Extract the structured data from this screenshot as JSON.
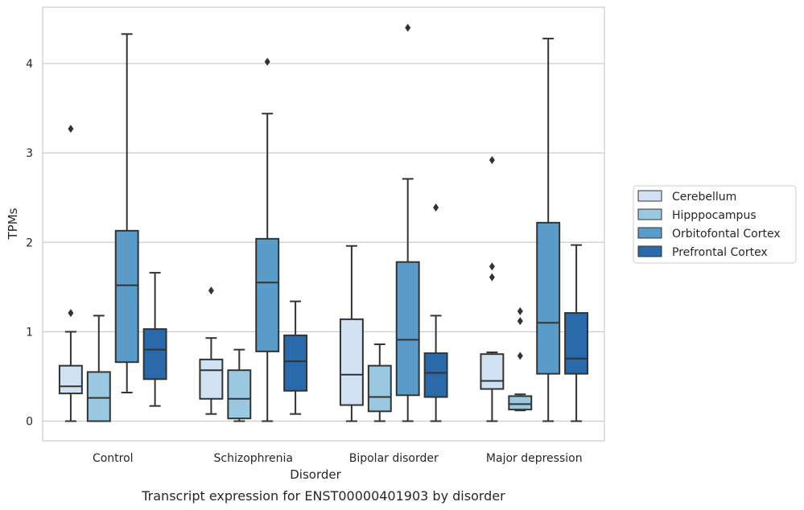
{
  "caption": "Transcript expression for ENST00000401903 by disorder",
  "chart_data": {
    "type": "box",
    "xlabel": "Disorder",
    "ylabel": "TPMs",
    "ylim": [
      -0.22,
      4.63
    ],
    "yticks": [
      0,
      1,
      2,
      3,
      4
    ],
    "grid": "horizontal",
    "legend_position": "right",
    "categories": [
      "Control",
      "Schizophrenia",
      "Bipolar disorder",
      "Major depression"
    ],
    "series": [
      {
        "name": "Cerebellum",
        "color": "#cfe1f2",
        "boxes": [
          {
            "whisker_low": 0.0,
            "q1": 0.31,
            "median": 0.39,
            "q3": 0.62,
            "whisker_high": 1.0,
            "outliers": [
              1.21,
              3.27
            ]
          },
          {
            "whisker_low": 0.08,
            "q1": 0.25,
            "median": 0.57,
            "q3": 0.69,
            "whisker_high": 0.93,
            "outliers": [
              1.46
            ]
          },
          {
            "whisker_low": 0.0,
            "q1": 0.18,
            "median": 0.52,
            "q3": 1.14,
            "whisker_high": 1.96,
            "outliers": []
          },
          {
            "whisker_low": 0.0,
            "q1": 0.36,
            "median": 0.45,
            "q3": 0.75,
            "whisker_high": 0.77,
            "outliers": [
              1.61,
              1.73,
              2.92
            ]
          }
        ]
      },
      {
        "name": "Hipppocampus",
        "color": "#9ac8e0",
        "boxes": [
          {
            "whisker_low": 0.0,
            "q1": 0.0,
            "median": 0.26,
            "q3": 0.55,
            "whisker_high": 1.18,
            "outliers": []
          },
          {
            "whisker_low": 0.0,
            "q1": 0.03,
            "median": 0.25,
            "q3": 0.57,
            "whisker_high": 0.8,
            "outliers": []
          },
          {
            "whisker_low": 0.0,
            "q1": 0.11,
            "median": 0.27,
            "q3": 0.62,
            "whisker_high": 0.86,
            "outliers": []
          },
          {
            "whisker_low": 0.12,
            "q1": 0.13,
            "median": 0.19,
            "q3": 0.28,
            "whisker_high": 0.3,
            "outliers": [
              0.73,
              1.12,
              1.23
            ]
          }
        ]
      },
      {
        "name": "Orbitofontal Cortex",
        "color": "#5a9bc9",
        "boxes": [
          {
            "whisker_low": 0.32,
            "q1": 0.66,
            "median": 1.52,
            "q3": 2.13,
            "whisker_high": 4.33,
            "outliers": []
          },
          {
            "whisker_low": 0.0,
            "q1": 0.78,
            "median": 1.55,
            "q3": 2.04,
            "whisker_high": 3.44,
            "outliers": [
              4.02
            ]
          },
          {
            "whisker_low": 0.0,
            "q1": 0.29,
            "median": 0.91,
            "q3": 1.78,
            "whisker_high": 2.71,
            "outliers": [
              4.4
            ]
          },
          {
            "whisker_low": 0.0,
            "q1": 0.53,
            "median": 1.1,
            "q3": 2.22,
            "whisker_high": 4.28,
            "outliers": []
          }
        ]
      },
      {
        "name": "Prefrontal Cortex",
        "color": "#2b6aaa",
        "boxes": [
          {
            "whisker_low": 0.17,
            "q1": 0.47,
            "median": 0.8,
            "q3": 1.03,
            "whisker_high": 1.66,
            "outliers": []
          },
          {
            "whisker_low": 0.08,
            "q1": 0.34,
            "median": 0.67,
            "q3": 0.96,
            "whisker_high": 1.34,
            "outliers": []
          },
          {
            "whisker_low": 0.0,
            "q1": 0.27,
            "median": 0.54,
            "q3": 0.76,
            "whisker_high": 1.18,
            "outliers": [
              2.39
            ]
          },
          {
            "whisker_low": 0.0,
            "q1": 0.53,
            "median": 0.7,
            "q3": 1.21,
            "whisker_high": 1.97,
            "outliers": []
          }
        ]
      }
    ]
  }
}
